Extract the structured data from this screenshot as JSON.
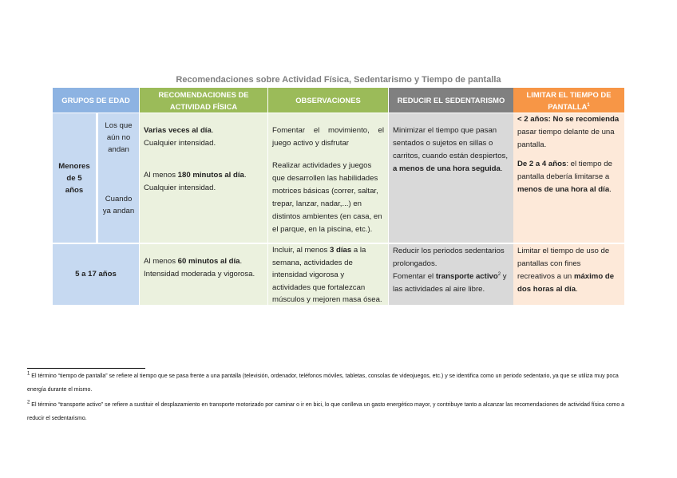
{
  "title": "Recomendaciones sobre Actividad Física, Sedentarismo y Tiempo de pantalla",
  "headers": {
    "grupos": "GRUPOS DE EDAD",
    "recomendaciones": "RECOMENDACIONES DE ACTIVIDAD FÍSICA",
    "observaciones": "OBSERVACIONES",
    "reducir": "REDUCIR EL SEDENTARISMO",
    "limitar": "LIMITAR EL TIEMPO DE PANTALLA",
    "limitar_sup": "1"
  },
  "colors": {
    "blue_header": "#8db3e2",
    "green_header": "#9bbb59",
    "gray_header": "#808080",
    "orange_header": "#f79646"
  },
  "rows": {
    "menores": {
      "group": "Menores de 5 años",
      "sub1": "Los que aún no andan",
      "sub2": "Cuando ya andan",
      "rec1_bold": "Varias veces al día",
      "rec1_a": ".",
      "rec1_b": "Cualquier intensidad.",
      "rec2_a": "Al menos ",
      "rec2_bold": "180 minutos al día",
      "rec2_b": ".",
      "rec2_c": "Cualquier intensidad.",
      "obs1": "Fomentar el movimiento, el juego activo y disfrutar",
      "obs2": "Realizar actividades y juegos que desarrollen las habilidades motrices básicas (correr, saltar, trepar, lanzar, nadar,...) en distintos ambientes (en casa, en el parque, en la piscina, etc.).",
      "red_a": "Minimizar el tiempo que pasan sentados o sujetos en sillas o carritos, cuando están despiertos, ",
      "red_bold": "a menos de una hora seguida",
      "red_b": ".",
      "lim1_bold": "< 2 años: No se recomienda",
      "lim1_b": " pasar tiempo delante de una pantalla.",
      "lim2_bold": "De 2 a 4 años",
      "lim2_b": ": el tiempo de pantalla debería limitarse a ",
      "lim2_bold2": "menos de una hora al día",
      "lim2_c": "."
    },
    "mayores": {
      "group": "5 a 17 años",
      "rec_a": "Al menos ",
      "rec_bold": "60 minutos al día",
      "rec_b": ".",
      "rec_c": "Intensidad moderada y vigorosa.",
      "obs_a": "Incluir, al menos ",
      "obs_bold": "3 días",
      "obs_b": " a la semana, actividades de intensidad vigorosa y actividades que fortalezcan músculos y mejoren masa ósea.",
      "red_a": "Reducir los periodos sedentarios prolongados.",
      "red_b": "Fomentar el ",
      "red_bold": "transporte activo",
      "red_sup": "2",
      "red_c": " y las actividades al aire libre.",
      "lim_a": "Limitar el tiempo de uso de pantallas con fines recreativos a un ",
      "lim_bold": "máximo de dos horas al día",
      "lim_b": "."
    }
  },
  "footnotes": [
    {
      "num": "1",
      "text": " El término “tiempo de pantalla” se refiere al tiempo que se pasa frente a una pantalla (televisión, ordenador, teléfonos móviles, tabletas, consolas de videojuegos, etc.) y se identifica como un periodo sedentario, ya que se utiliza muy poca energía durante el mismo."
    },
    {
      "num": "2",
      "text": " El término “transporte activo” se refiere a sustituir el desplazamiento en transporte motorizado por caminar o ir en bici, lo que conlleva un gasto energético mayor, y contribuye tanto a alcanzar las recomendaciones de actividad física como a reducir el sedentarismo."
    }
  ]
}
